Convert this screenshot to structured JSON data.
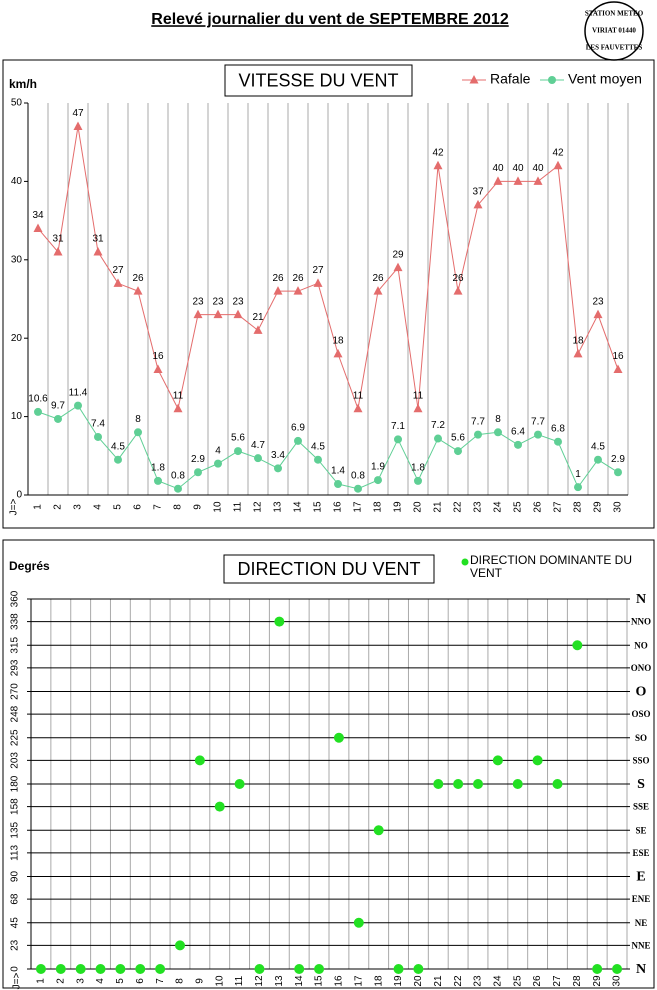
{
  "title": "Relevé journalier du vent de SEPTEMBRE 2012",
  "logo": [
    "STATION METEO",
    "VIRIAT 01440",
    "LES FAUVETTES"
  ],
  "chart_data": [
    {
      "type": "line",
      "title": "VITESSE DU VENT",
      "ylabel": "km/h",
      "xlabel": "J=>",
      "categories": [
        "1",
        "2",
        "3",
        "4",
        "5",
        "6",
        "7",
        "8",
        "9",
        "10",
        "11",
        "12",
        "13",
        "14",
        "15",
        "16",
        "17",
        "18",
        "19",
        "20",
        "21",
        "22",
        "23",
        "24",
        "25",
        "26",
        "27",
        "28",
        "29",
        "30"
      ],
      "ylim": [
        0,
        50
      ],
      "yticks": [
        0,
        10,
        20,
        30,
        40,
        50
      ],
      "legend": "top-right",
      "series": [
        {
          "name": "Rafale",
          "color": "#e46c6c",
          "marker": "triangle",
          "values": [
            34,
            31,
            47,
            31,
            27,
            26,
            16,
            11,
            23,
            23,
            23,
            21,
            26,
            26,
            27,
            18,
            11,
            26,
            29,
            11,
            42,
            26,
            37,
            40,
            40,
            40,
            42,
            18,
            23,
            16
          ]
        },
        {
          "name": "Vent moyen",
          "color": "#5fcf95",
          "marker": "circle",
          "values": [
            10.6,
            9.7,
            11.4,
            7.4,
            4.5,
            8,
            1.8,
            0.8,
            2.9,
            4,
            5.6,
            4.7,
            3.4,
            6.9,
            4.5,
            1.4,
            0.8,
            1.9,
            7.1,
            1.8,
            7.2,
            5.6,
            7.7,
            8,
            6.4,
            7.7,
            6.8,
            1,
            4.5,
            2.9
          ]
        }
      ]
    },
    {
      "type": "scatter",
      "title": "DIRECTION DU VENT",
      "ylabel": "Degrés",
      "xlabel": "J=>",
      "categories": [
        "1",
        "2",
        "3",
        "4",
        "5",
        "6",
        "7",
        "8",
        "9",
        "10",
        "11",
        "12",
        "13",
        "14",
        "15",
        "16",
        "17",
        "18",
        "19",
        "20",
        "21",
        "22",
        "23",
        "24",
        "25",
        "26",
        "27",
        "28",
        "29",
        "30"
      ],
      "ylim": [
        0,
        360
      ],
      "yticks": [
        0,
        23,
        45,
        68,
        90,
        113,
        135,
        158,
        180,
        203,
        225,
        248,
        270,
        293,
        315,
        338,
        360
      ],
      "y2lim": [
        0,
        360
      ],
      "y2ticks": [
        {
          "value": 0,
          "label": "N"
        },
        {
          "value": 23,
          "label": "NNE"
        },
        {
          "value": 45,
          "label": "NE"
        },
        {
          "value": 68,
          "label": "ENE"
        },
        {
          "value": 90,
          "label": "E"
        },
        {
          "value": 113,
          "label": "ESE"
        },
        {
          "value": 135,
          "label": "SE"
        },
        {
          "value": 158,
          "label": "SSE"
        },
        {
          "value": 180,
          "label": "S"
        },
        {
          "value": 203,
          "label": "SSO"
        },
        {
          "value": 225,
          "label": "SO"
        },
        {
          "value": 248,
          "label": "OSO"
        },
        {
          "value": 270,
          "label": "O"
        },
        {
          "value": 293,
          "label": "ONO"
        },
        {
          "value": 315,
          "label": "NO"
        },
        {
          "value": 338,
          "label": "NNO"
        },
        {
          "value": 360,
          "label": "N"
        }
      ],
      "grid": true,
      "legend": "top-right",
      "series": [
        {
          "name": "DIRECTION DOMINANTE DU VENT",
          "color": "#22e022",
          "marker": "circle",
          "values": [
            0,
            0,
            0,
            0,
            0,
            0,
            0,
            23,
            203,
            158,
            180,
            0,
            338,
            0,
            0,
            225,
            45,
            135,
            0,
            0,
            180,
            180,
            180,
            203,
            180,
            203,
            180,
            315,
            0,
            0
          ]
        }
      ]
    }
  ]
}
